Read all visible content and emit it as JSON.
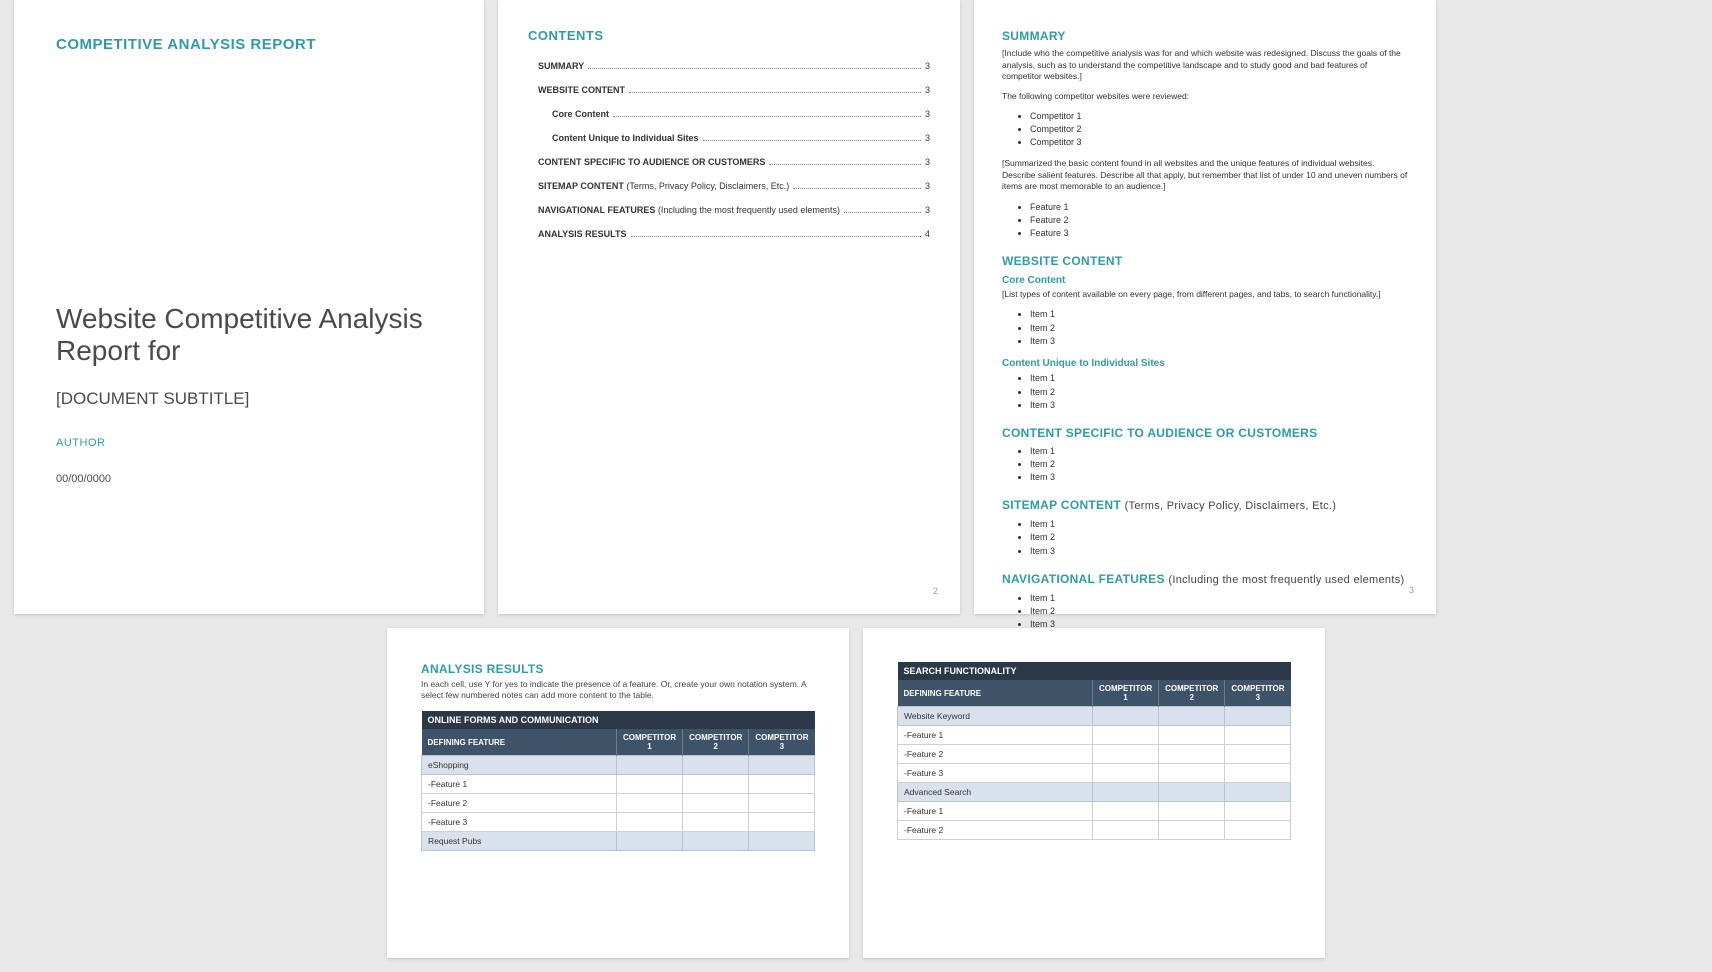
{
  "colors": {
    "accent": "#2e9ca6",
    "page_bg": "#ffffff",
    "body_bg": "#e8e8e8",
    "tbl_title_bg": "#2b3847",
    "tbl_head_bg": "#3e5368",
    "tbl_cat_bg": "#d9e2ec",
    "text": "#4a4a4a"
  },
  "page1": {
    "header": "COMPETITIVE ANALYSIS REPORT",
    "title": "Website Competitive Analysis Report for",
    "subtitle": "[DOCUMENT SUBTITLE]",
    "author": "AUTHOR",
    "date": "00/00/0000"
  },
  "page2": {
    "heading": "CONTENTS",
    "entries": [
      {
        "label": "SUMMARY",
        "page": "3",
        "bold": true,
        "sub": false
      },
      {
        "label": "WEBSITE CONTENT",
        "page": "3",
        "bold": true,
        "sub": false
      },
      {
        "label": "Core Content",
        "page": "3",
        "bold": true,
        "sub": true
      },
      {
        "label": "Content Unique to Individual Sites",
        "page": "3",
        "bold": true,
        "sub": true
      },
      {
        "label": "CONTENT SPECIFIC TO AUDIENCE OR CUSTOMERS",
        "page": "3",
        "bold": true,
        "sub": false
      },
      {
        "label": "SITEMAP CONTENT (Terms, Privacy Policy, Disclaimers, Etc.)",
        "page": "3",
        "bold": false,
        "sub": false,
        "leadBold": "SITEMAP CONTENT"
      },
      {
        "label": "NAVIGATIONAL FEATURES (Including the most frequently used elements)",
        "page": "3",
        "bold": false,
        "sub": false,
        "leadBold": "NAVIGATIONAL FEATURES"
      },
      {
        "label": "ANALYSIS RESULTS",
        "page": "4",
        "bold": true,
        "sub": false
      }
    ],
    "page_num": "2"
  },
  "page3": {
    "summary": {
      "heading": "SUMMARY",
      "intro": "[Include who the competitive analysis was for and which website was redesigned. Discuss the goals of the analysis, such as to understand the competitive landscape and to study good and bad features of competitor websites.]",
      "reviewed_label": "The following competitor websites were reviewed:",
      "competitors": [
        "Competitor 1",
        "Competitor 2",
        "Competitor 3"
      ],
      "summarized": "[Summarized the basic content found in all websites and the unique features of individual websites. Describe salient features. Describe all that apply, but remember that list of under 10 and uneven numbers of items are most memorable to an audience.]",
      "features": [
        "Feature 1",
        "Feature 2",
        "Feature 3"
      ]
    },
    "website_content": {
      "heading": "WEBSITE CONTENT",
      "core": {
        "heading": "Core Content",
        "note": "[List types of content available on every page, from different pages, and tabs, to search functionality.]",
        "items": [
          "Item 1",
          "Item 2",
          "Item 3"
        ]
      },
      "unique": {
        "heading": "Content Unique to Individual Sites",
        "items": [
          "Item 1",
          "Item 2",
          "Item 3"
        ]
      }
    },
    "audience": {
      "heading": "CONTENT SPECIFIC TO AUDIENCE OR CUSTOMERS",
      "items": [
        "Item 1",
        "Item 2",
        "Item 3"
      ]
    },
    "sitemap": {
      "heading": "SITEMAP CONTENT",
      "note": "(Terms, Privacy Policy, Disclaimers, Etc.)",
      "items": [
        "Item 1",
        "Item 2",
        "Item 3"
      ]
    },
    "nav": {
      "heading": "NAVIGATIONAL FEATURES",
      "note": "(Including the most frequently used elements)",
      "items": [
        "Item 1",
        "Item 2",
        "Item 3"
      ]
    },
    "page_num": "3"
  },
  "page4": {
    "heading": "ANALYSIS RESULTS",
    "note": "In each cell, use Y for yes to indicate the presence of a feature. Or, create your own notation system. A select few numbered notes can add more content to the table.",
    "table": {
      "title": "ONLINE FORMS AND COMMUNICATION",
      "head": [
        "DEFINING FEATURE",
        "COMPETITOR 1",
        "COMPETITOR 2",
        "COMPETITOR 3"
      ],
      "rows": [
        {
          "type": "cat",
          "label": "eShopping"
        },
        {
          "type": "feat",
          "label": "-Feature 1"
        },
        {
          "type": "feat",
          "label": "-Feature 2"
        },
        {
          "type": "feat",
          "label": "-Feature 3"
        },
        {
          "type": "cat",
          "label": "Request Pubs"
        }
      ]
    }
  },
  "page5": {
    "table": {
      "title": "SEARCH FUNCTIONALITY",
      "head": [
        "DEFINING FEATURE",
        "COMPETITOR 1",
        "COMPETITOR 2",
        "COMPETITOR 3"
      ],
      "rows": [
        {
          "type": "cat",
          "label": "Website Keyword"
        },
        {
          "type": "feat",
          "label": "-Feature 1"
        },
        {
          "type": "feat",
          "label": "-Feature 2"
        },
        {
          "type": "feat",
          "label": "-Feature 3"
        },
        {
          "type": "cat",
          "label": "Advanced Search"
        },
        {
          "type": "feat",
          "label": "-Feature 1"
        },
        {
          "type": "feat",
          "label": "-Feature 2"
        }
      ]
    }
  }
}
